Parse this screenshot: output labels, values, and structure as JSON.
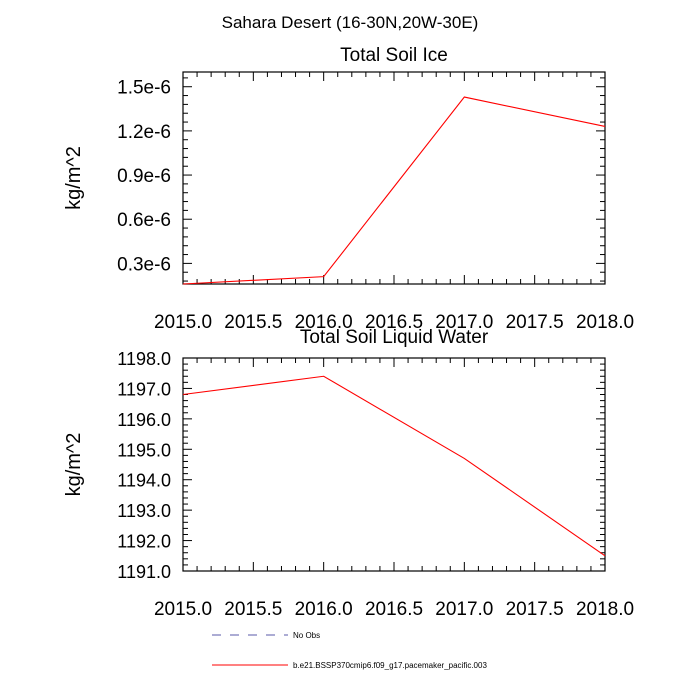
{
  "figure_title": "Sahara Desert (16-30N,20W-30E)",
  "chart_data": [
    {
      "type": "line",
      "title": "Total Soil Ice",
      "xlabel": "",
      "ylabel": "kg/m^2",
      "xlim": [
        2015.0,
        2018.0
      ],
      "ylim": [
        1.6e-07,
        1.6e-06
      ],
      "x_ticks": [
        2015.0,
        2015.5,
        2016.0,
        2016.5,
        2017.0,
        2017.5,
        2018.0
      ],
      "x_tick_labels": [
        "2015.0",
        "2015.5",
        "2016.0",
        "2016.5",
        "2017.0",
        "2017.5",
        "2018.0"
      ],
      "y_ticks": [
        3e-07,
        6e-07,
        9e-07,
        1.2e-06,
        1.5e-06
      ],
      "y_tick_labels": [
        "0.3e-6",
        "0.6e-6",
        "0.9e-6",
        "1.2e-6",
        "1.5e-6"
      ],
      "grid": false,
      "series": [
        {
          "name": "b.e21.BSSP370cmip6.f09_g17.pacemaker_pacific.003",
          "color": "#ff0000",
          "x": [
            2015.0,
            2016.0,
            2017.0,
            2018.0
          ],
          "y": [
            1.6e-07,
            2.1e-07,
            1.43e-06,
            1.23e-06
          ]
        }
      ]
    },
    {
      "type": "line",
      "title": "Total Soil Liquid Water",
      "xlabel": "",
      "ylabel": "kg/m^2",
      "xlim": [
        2015.0,
        2018.0
      ],
      "ylim": [
        1191.0,
        1198.0
      ],
      "x_ticks": [
        2015.0,
        2015.5,
        2016.0,
        2016.5,
        2017.0,
        2017.5,
        2018.0
      ],
      "x_tick_labels": [
        "2015.0",
        "2015.5",
        "2016.0",
        "2016.5",
        "2017.0",
        "2017.5",
        "2018.0"
      ],
      "y_ticks": [
        1191.0,
        1192.0,
        1193.0,
        1194.0,
        1195.0,
        1196.0,
        1197.0,
        1198.0
      ],
      "y_tick_labels": [
        "1191.0",
        "1192.0",
        "1193.0",
        "1194.0",
        "1195.0",
        "1196.0",
        "1197.0",
        "1198.0"
      ],
      "grid": false,
      "series": [
        {
          "name": "b.e21.BSSP370cmip6.f09_g17.pacemaker_pacific.003",
          "color": "#ff0000",
          "x": [
            2015.0,
            2016.0,
            2017.0,
            2018.0
          ],
          "y": [
            1196.8,
            1197.4,
            1194.7,
            1191.5
          ]
        }
      ]
    }
  ],
  "legend": {
    "placement": "bottom",
    "items": [
      {
        "label": "No Obs",
        "color": "#5a5aa8",
        "dash": "dashed"
      },
      {
        "label": "b.e21.BSSP370cmip6.f09_g17.pacemaker_pacific.003",
        "color": "#ff0000",
        "dash": "solid"
      }
    ]
  }
}
